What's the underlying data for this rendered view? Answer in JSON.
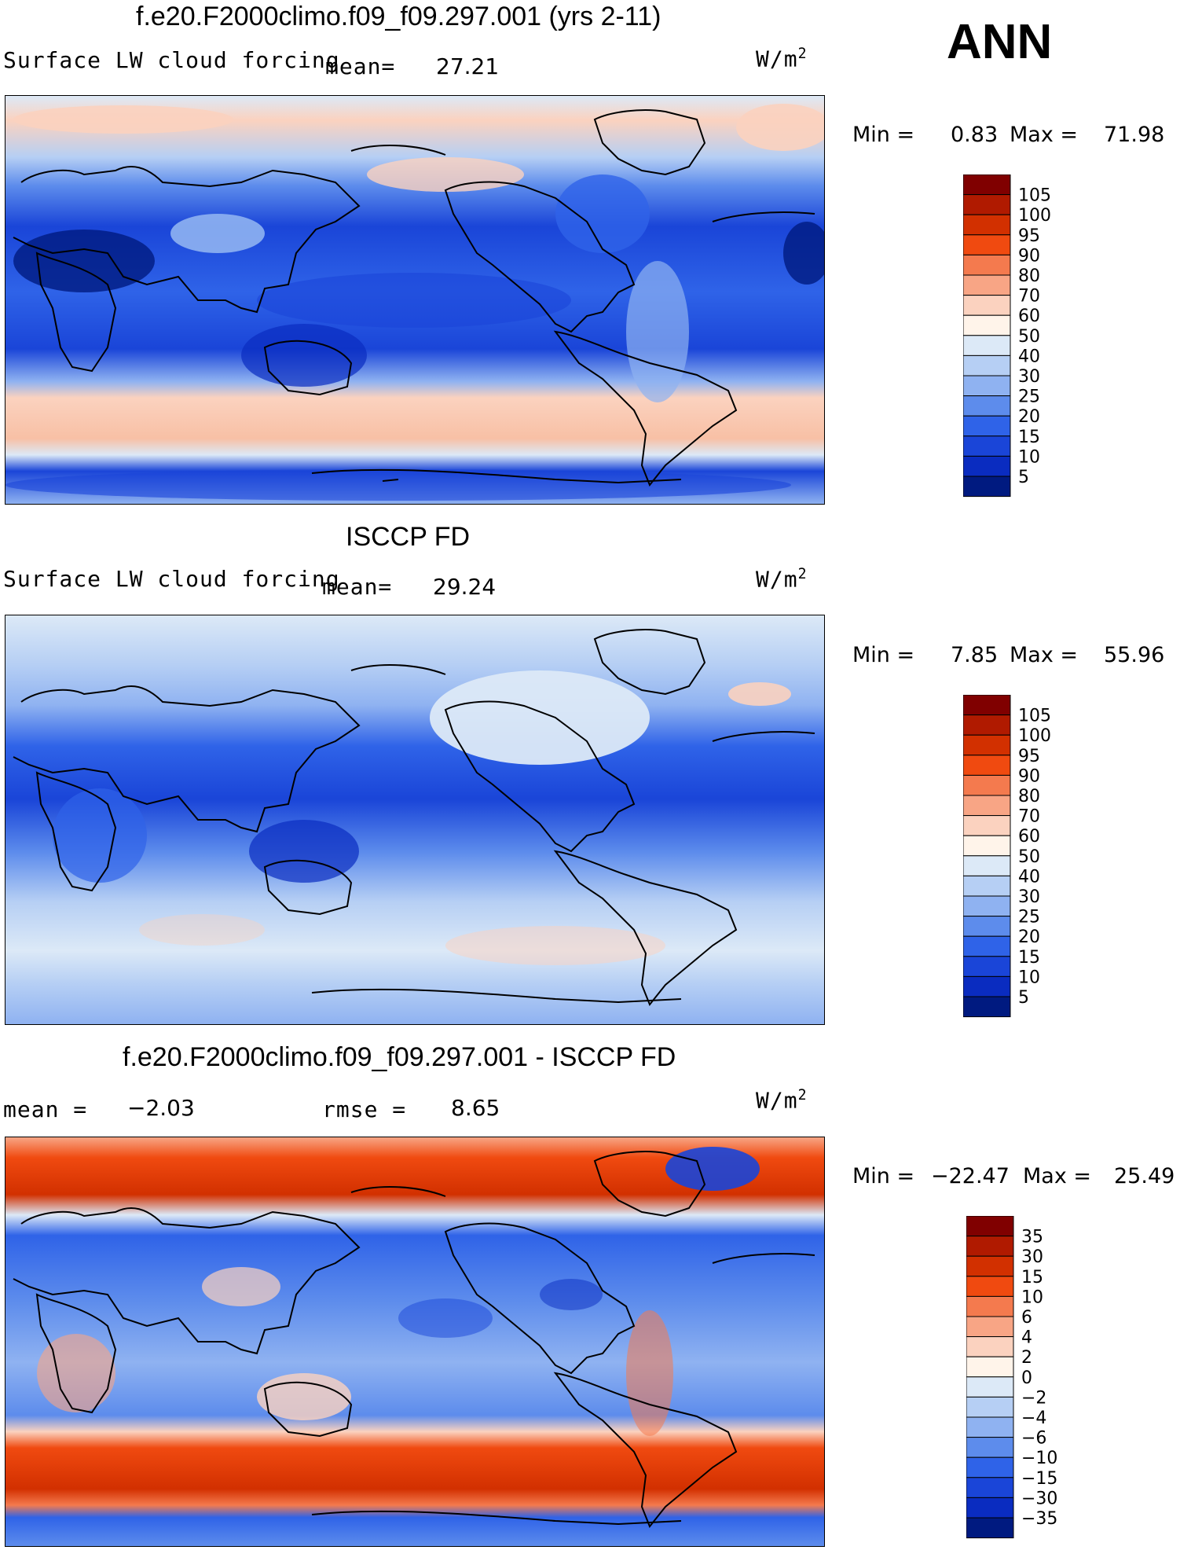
{
  "season": "ANN",
  "units": "W/m",
  "units_sup": "2",
  "panels": [
    {
      "title": "f.e20.F2000climo.f09_f09.297.001 (yrs 2-11)",
      "variable": "Surface LW cloud forcing",
      "stat1_label": "mean=",
      "stat1_value": "27.21",
      "min_label": "Min =",
      "min_value": "0.83",
      "max_label": "Max =",
      "max_value": "71.98",
      "colorbar_labels": [
        "105",
        "100",
        "95",
        "90",
        "80",
        "70",
        "60",
        "50",
        "40",
        "30",
        "25",
        "20",
        "15",
        "10",
        "5"
      ]
    },
    {
      "title": "ISCCP FD",
      "variable": "Surface LW cloud forcing",
      "stat1_label": "mean=",
      "stat1_value": "29.24",
      "min_label": "Min =",
      "min_value": "7.85",
      "max_label": "Max =",
      "max_value": "55.96",
      "colorbar_labels": [
        "105",
        "100",
        "95",
        "90",
        "80",
        "70",
        "60",
        "50",
        "40",
        "30",
        "25",
        "20",
        "15",
        "10",
        "5"
      ]
    },
    {
      "title": "f.e20.F2000climo.f09_f09.297.001 - ISCCP FD",
      "stat1_label": "mean =",
      "stat1_value": "−2.03",
      "stat2_label": "rmse =",
      "stat2_value": "8.65",
      "min_label": "Min =",
      "min_value": "−22.47",
      "max_label": "Max =",
      "max_value": "25.49",
      "colorbar_labels": [
        "35",
        "30",
        "15",
        "10",
        "6",
        "4",
        "2",
        "0",
        "−2",
        "−4",
        "−6",
        "−10",
        "−15",
        "−30",
        "−35"
      ]
    }
  ],
  "colors": {
    "abs_scale": [
      "#800000",
      "#b01a00",
      "#d23000",
      "#f04a10",
      "#f47a4e",
      "#f8a585",
      "#fbd2bf",
      "#fff4ea",
      "#dce9f7",
      "#b6cff4",
      "#8fb2f1",
      "#5d8cec",
      "#2f63e8",
      "#1a45d8",
      "#0a2cc0",
      "#001a80"
    ],
    "diff_scale": [
      "#800000",
      "#b01a00",
      "#d23000",
      "#f04a10",
      "#f47a4e",
      "#f8a585",
      "#fbd2bf",
      "#fff4ea",
      "#dce9f7",
      "#b6cff4",
      "#8fb2f1",
      "#5d8cec",
      "#2f63e8",
      "#1a45d8",
      "#0a2cc0",
      "#001a80"
    ]
  }
}
